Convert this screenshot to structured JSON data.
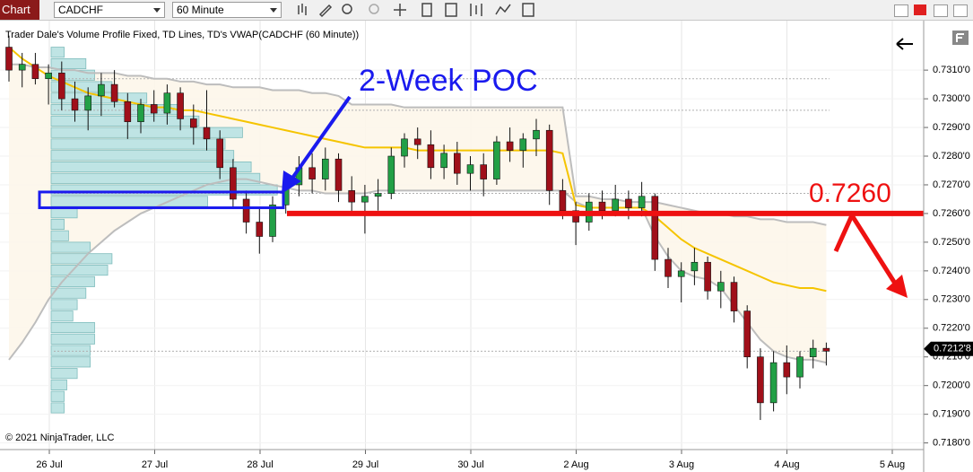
{
  "toolbar": {
    "title": "Chart",
    "instrument": "CADCHF",
    "interval": "60 Minute"
  },
  "chart_data": {
    "type": "candlestick",
    "title": "Trader Dale's Volume Profile Fixed, TD Lines, TD's VWAP(CADCHF (60 Minute))",
    "copyright": "© 2021 NinjaTrader, LLC",
    "date_labels": [
      "26 Jul",
      "27 Jul",
      "28 Jul",
      "29 Jul",
      "30 Jul",
      "2 Aug",
      "3 Aug",
      "4 Aug",
      "5 Aug"
    ],
    "ylim": [
      0.7178,
      0.7326
    ],
    "yticks": [
      {
        "value": 0.731,
        "label": "0.7310'0"
      },
      {
        "value": 0.73,
        "label": "0.7300'0"
      },
      {
        "value": 0.729,
        "label": "0.7290'0"
      },
      {
        "value": 0.728,
        "label": "0.7280'0"
      },
      {
        "value": 0.727,
        "label": "0.7270'0"
      },
      {
        "value": 0.726,
        "label": "0.7260'0"
      },
      {
        "value": 0.725,
        "label": "0.7250'0"
      },
      {
        "value": 0.724,
        "label": "0.7240'0"
      },
      {
        "value": 0.723,
        "label": "0.7230'0"
      },
      {
        "value": 0.722,
        "label": "0.7220'0"
      },
      {
        "value": 0.721,
        "label": "0.7210'0"
      },
      {
        "value": 0.72,
        "label": "0.7200'0"
      },
      {
        "value": 0.719,
        "label": "0.7190'0"
      },
      {
        "value": 0.718,
        "label": "0.7180'0"
      }
    ],
    "up_color": "#22a046",
    "down_color": "#a0101a",
    "candles": [
      [
        0.7318,
        0.7322,
        0.7306,
        0.731
      ],
      [
        0.731,
        0.7316,
        0.7304,
        0.7312
      ],
      [
        0.7312,
        0.7316,
        0.7305,
        0.7307
      ],
      [
        0.7307,
        0.7312,
        0.7298,
        0.7309
      ],
      [
        0.7309,
        0.7313,
        0.7296,
        0.73
      ],
      [
        0.73,
        0.7306,
        0.7292,
        0.7296
      ],
      [
        0.7296,
        0.7304,
        0.7289,
        0.7301
      ],
      [
        0.7301,
        0.7309,
        0.7294,
        0.7305
      ],
      [
        0.7305,
        0.731,
        0.7297,
        0.7299
      ],
      [
        0.7299,
        0.7302,
        0.7286,
        0.7292
      ],
      [
        0.7292,
        0.73,
        0.7288,
        0.7298
      ],
      [
        0.7298,
        0.7303,
        0.7292,
        0.7295
      ],
      [
        0.7295,
        0.7305,
        0.7291,
        0.7302
      ],
      [
        0.7302,
        0.7304,
        0.7289,
        0.7293
      ],
      [
        0.7293,
        0.7298,
        0.7284,
        0.729
      ],
      [
        0.729,
        0.7303,
        0.7282,
        0.7286
      ],
      [
        0.7286,
        0.7289,
        0.7272,
        0.7276
      ],
      [
        0.7276,
        0.7279,
        0.7262,
        0.7265
      ],
      [
        0.7265,
        0.7268,
        0.7253,
        0.7257
      ],
      [
        0.7257,
        0.7262,
        0.7246,
        0.7252
      ],
      [
        0.7252,
        0.7266,
        0.725,
        0.7263
      ],
      [
        0.7263,
        0.7272,
        0.726,
        0.727
      ],
      [
        0.727,
        0.728,
        0.7266,
        0.7276
      ],
      [
        0.7276,
        0.7281,
        0.7267,
        0.7272
      ],
      [
        0.7272,
        0.7283,
        0.7268,
        0.7279
      ],
      [
        0.7279,
        0.7281,
        0.7264,
        0.7268
      ],
      [
        0.7268,
        0.7273,
        0.726,
        0.7264
      ],
      [
        0.7264,
        0.727,
        0.7253,
        0.7266
      ],
      [
        0.7266,
        0.7272,
        0.7261,
        0.7267
      ],
      [
        0.7267,
        0.7283,
        0.7265,
        0.728
      ],
      [
        0.728,
        0.7288,
        0.7276,
        0.7286
      ],
      [
        0.7286,
        0.729,
        0.7279,
        0.7284
      ],
      [
        0.7284,
        0.7289,
        0.7272,
        0.7276
      ],
      [
        0.7276,
        0.7284,
        0.7272,
        0.7281
      ],
      [
        0.7281,
        0.7285,
        0.727,
        0.7274
      ],
      [
        0.7274,
        0.728,
        0.7268,
        0.7277
      ],
      [
        0.7277,
        0.7281,
        0.7266,
        0.7272
      ],
      [
        0.7272,
        0.7287,
        0.727,
        0.7285
      ],
      [
        0.7285,
        0.729,
        0.7278,
        0.7282
      ],
      [
        0.7282,
        0.7288,
        0.7276,
        0.7286
      ],
      [
        0.7286,
        0.7293,
        0.728,
        0.7289
      ],
      [
        0.7289,
        0.7291,
        0.7263,
        0.7268
      ],
      [
        0.7268,
        0.7272,
        0.7258,
        0.7261
      ],
      [
        0.7261,
        0.7264,
        0.7249,
        0.7257
      ],
      [
        0.7257,
        0.7267,
        0.7254,
        0.7264
      ],
      [
        0.7264,
        0.7268,
        0.7258,
        0.7261
      ],
      [
        0.7261,
        0.727,
        0.7259,
        0.7265
      ],
      [
        0.7265,
        0.7268,
        0.7258,
        0.7262
      ],
      [
        0.7262,
        0.7271,
        0.7259,
        0.7266
      ],
      [
        0.7266,
        0.7267,
        0.724,
        0.7244
      ],
      [
        0.7244,
        0.7248,
        0.7234,
        0.7238
      ],
      [
        0.7238,
        0.7243,
        0.7229,
        0.724
      ],
      [
        0.724,
        0.7248,
        0.7235,
        0.7243
      ],
      [
        0.7243,
        0.7245,
        0.723,
        0.7233
      ],
      [
        0.7233,
        0.724,
        0.7227,
        0.7236
      ],
      [
        0.7236,
        0.7238,
        0.7222,
        0.7226
      ],
      [
        0.7226,
        0.7228,
        0.7206,
        0.721
      ],
      [
        0.721,
        0.7213,
        0.7188,
        0.7194
      ],
      [
        0.7194,
        0.7212,
        0.7191,
        0.7208
      ],
      [
        0.7208,
        0.7214,
        0.7197,
        0.7203
      ],
      [
        0.7203,
        0.7212,
        0.7199,
        0.721
      ],
      [
        0.721,
        0.7216,
        0.7206,
        0.7213
      ],
      [
        0.7213,
        0.7215,
        0.7207,
        0.7212
      ]
    ],
    "vwap_color": "#f5c400",
    "band_color": "#bdbdbd",
    "vwap": [
      0.7318,
      0.7314,
      0.7311,
      0.7308,
      0.7306,
      0.7304,
      0.7302,
      0.7301,
      0.73,
      0.7299,
      0.7298,
      0.7297,
      0.7297,
      0.7296,
      0.7296,
      0.7295,
      0.7294,
      0.7293,
      0.7292,
      0.7291,
      0.729,
      0.7289,
      0.7288,
      0.7287,
      0.7286,
      0.7285,
      0.7284,
      0.7283,
      0.7283,
      0.7283,
      0.7283,
      0.7282,
      0.7282,
      0.7282,
      0.7282,
      0.7282,
      0.7282,
      0.7282,
      0.7282,
      0.7282,
      0.7282,
      0.7282,
      0.7281,
      0.7263,
      0.7262,
      0.7262,
      0.7262,
      0.7262,
      0.7262,
      0.7259,
      0.7255,
      0.7251,
      0.7248,
      0.7246,
      0.7244,
      0.7242,
      0.724,
      0.7238,
      0.7236,
      0.7235,
      0.7234,
      0.7234,
      0.7233
    ],
    "upper_band": [
      0.7312,
      0.7312,
      0.7311,
      0.7311,
      0.731,
      0.731,
      0.7309,
      0.7309,
      0.7309,
      0.7308,
      0.7308,
      0.7307,
      0.7307,
      0.7306,
      0.7306,
      0.7305,
      0.7305,
      0.7304,
      0.7304,
      0.7304,
      0.7303,
      0.7303,
      0.7303,
      0.7302,
      0.7302,
      0.7301,
      0.7298,
      0.7298,
      0.7298,
      0.7298,
      0.7297,
      0.7297,
      0.7297,
      0.7297,
      0.7297,
      0.7297,
      0.7297,
      0.7297,
      0.7297,
      0.7297,
      0.7297,
      0.7297,
      0.7297,
      0.7266,
      0.7266,
      0.7265,
      0.7265,
      0.7264,
      0.7264,
      0.7264,
      0.7263,
      0.7262,
      0.7261,
      0.726,
      0.726,
      0.7259,
      0.7259,
      0.7258,
      0.7258,
      0.7257,
      0.7257,
      0.7257,
      0.7256
    ],
    "lower_band": [
      0.7209,
      0.7215,
      0.7222,
      0.723,
      0.7236,
      0.7241,
      0.7246,
      0.725,
      0.7254,
      0.7257,
      0.726,
      0.7262,
      0.7264,
      0.7266,
      0.7268,
      0.727,
      0.7271,
      0.7272,
      0.7272,
      0.7271,
      0.727,
      0.7269,
      0.7268,
      0.7268,
      0.7267,
      0.7267,
      0.7267,
      0.7267,
      0.7268,
      0.7268,
      0.7268,
      0.7268,
      0.7268,
      0.7268,
      0.7268,
      0.7268,
      0.7268,
      0.7268,
      0.7268,
      0.7268,
      0.7268,
      0.7268,
      0.7268,
      0.7264,
      0.7262,
      0.7262,
      0.7262,
      0.7262,
      0.7262,
      0.7252,
      0.7245,
      0.724,
      0.7238,
      0.7237,
      0.7234,
      0.7228,
      0.7222,
      0.7216,
      0.7212,
      0.721,
      0.7209,
      0.7209,
      0.7208
    ],
    "volume_profile": {
      "prices": [
        0.7316,
        0.7312,
        0.7308,
        0.7304,
        0.73,
        0.7296,
        0.7292,
        0.7288,
        0.7284,
        0.728,
        0.7276,
        0.7272,
        0.7268,
        0.7264,
        0.726,
        0.7256,
        0.7252,
        0.7248,
        0.7244,
        0.724,
        0.7236,
        0.7232,
        0.7228,
        0.7224,
        0.722,
        0.7216,
        0.7212,
        0.7208,
        0.7204,
        0.72,
        0.7196,
        0.7192
      ],
      "volumes": [
        15,
        40,
        50,
        70,
        110,
        150,
        170,
        220,
        200,
        210,
        230,
        240,
        260,
        180,
        30,
        15,
        20,
        45,
        70,
        65,
        50,
        40,
        30,
        25,
        50,
        50,
        45,
        45,
        30,
        18,
        15,
        15
      ]
    },
    "reference_levels": [
      0.7307,
      0.7296,
      0.7267,
      0.7212
    ],
    "last_price": {
      "value": 0.72128,
      "label": "0.7212'8"
    },
    "annotations": {
      "poc_label": "2-Week POC",
      "poc_box": [
        0.7262,
        0.72675
      ],
      "level": {
        "value": 0.726,
        "label": "0.7260"
      }
    }
  }
}
